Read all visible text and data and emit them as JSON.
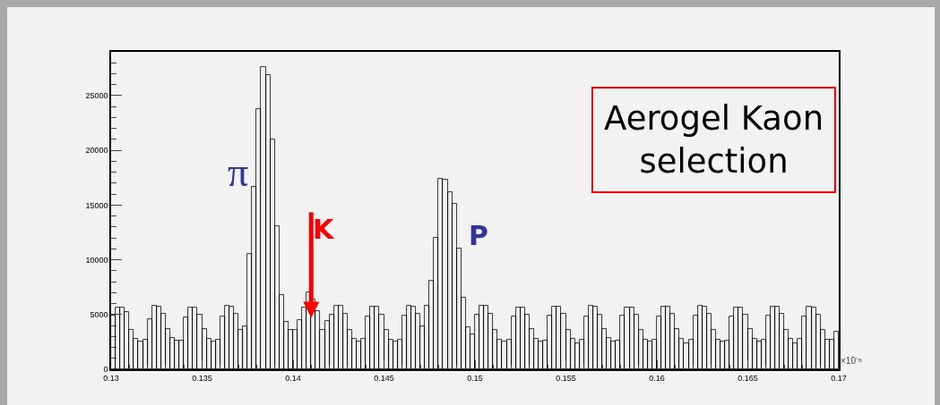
{
  "chart_data": {
    "type": "histogram",
    "bins": [
      0.13,
      0.13025,
      0.1305,
      0.13075,
      0.131,
      0.13125,
      0.1315,
      0.13175,
      0.132,
      0.13225,
      0.1325,
      0.13275,
      0.133,
      0.13325,
      0.1335,
      0.13375,
      0.134,
      0.13425,
      0.1345,
      0.13475,
      0.135,
      0.13525,
      0.1355,
      0.13575,
      0.136,
      0.13625,
      0.1365,
      0.13675,
      0.137,
      0.13725,
      0.1375,
      0.13775,
      0.138,
      0.13825,
      0.1385,
      0.13875,
      0.139,
      0.13925,
      0.1395,
      0.13975,
      0.14,
      0.14025,
      0.1405,
      0.14075,
      0.141,
      0.14125,
      0.1415,
      0.14175,
      0.142,
      0.14225,
      0.1425,
      0.14275,
      0.143,
      0.14325,
      0.1435,
      0.14375,
      0.144,
      0.14425,
      0.1445,
      0.14475,
      0.145,
      0.14525,
      0.1455,
      0.14575,
      0.146,
      0.14625,
      0.1465,
      0.14675,
      0.147,
      0.14725,
      0.1475,
      0.14775,
      0.148,
      0.14825,
      0.1485,
      0.14875,
      0.149,
      0.14925,
      0.1495,
      0.14975,
      0.15,
      0.15025,
      0.1505,
      0.15075,
      0.151,
      0.15125,
      0.1515,
      0.15175,
      0.152,
      0.15225,
      0.1525,
      0.15275,
      0.153,
      0.15325,
      0.1535,
      0.15375,
      0.154,
      0.15425,
      0.1545,
      0.15475,
      0.155,
      0.15525,
      0.1555,
      0.15575,
      0.156,
      0.15625,
      0.1565,
      0.15675,
      0.157,
      0.15725,
      0.1575,
      0.15775,
      0.158,
      0.15825,
      0.1585,
      0.15875,
      0.159,
      0.15925,
      0.1595,
      0.15975,
      0.16,
      0.16025,
      0.1605,
      0.16075,
      0.161,
      0.16125,
      0.1615,
      0.16175,
      0.162,
      0.16225,
      0.1625,
      0.16275,
      0.163,
      0.16325,
      0.1635,
      0.16375,
      0.164,
      0.16425,
      0.1645,
      0.16475,
      0.165,
      0.16525,
      0.1655,
      0.16575,
      0.166,
      0.16625,
      0.1665,
      0.16675,
      0.167,
      0.16725,
      0.1675,
      0.16775,
      0.168,
      0.16825,
      0.1685,
      0.16875,
      0.169,
      0.16925,
      0.1695,
      0.16975,
      0.17
    ],
    "values": [
      4900,
      5600,
      5600,
      5200,
      3600,
      2800,
      2500,
      2700,
      4600,
      5800,
      5700,
      5100,
      3700,
      2900,
      2600,
      2600,
      4700,
      5600,
      5600,
      5000,
      3700,
      2800,
      2500,
      2700,
      4800,
      5800,
      5700,
      5100,
      3600,
      3900,
      10500,
      16700,
      23800,
      27600,
      26900,
      21000,
      13100,
      6800,
      4300,
      3600,
      3600,
      4500,
      5600,
      7000,
      6400,
      5300,
      3600,
      4400,
      5000,
      5800,
      5800,
      5100,
      3600,
      2800,
      2500,
      2800,
      4800,
      5700,
      5700,
      5000,
      3600,
      2700,
      2500,
      2700,
      4900,
      5800,
      5700,
      5100,
      3900,
      5800,
      8100,
      12000,
      17400,
      17300,
      16200,
      15100,
      11000,
      6500,
      3800,
      3200,
      5000,
      5800,
      5800,
      5100,
      3600,
      2700,
      2500,
      2700,
      4800,
      5600,
      5600,
      5000,
      3700,
      2800,
      2500,
      2600,
      4900,
      5700,
      5700,
      5100,
      3600,
      2800,
      2400,
      2700,
      4800,
      5800,
      5700,
      5000,
      3700,
      2900,
      2500,
      2600,
      4900,
      5600,
      5600,
      5000,
      3600,
      2700,
      2500,
      2700,
      4800,
      5700,
      5700,
      5100,
      3700,
      2800,
      2400,
      2700,
      4900,
      5800,
      5700,
      5100,
      3600,
      2700,
      2500,
      2600,
      4800,
      5600,
      5600,
      5000,
      3700,
      2800,
      2500,
      2700,
      4900,
      5700,
      5700,
      5100,
      3600,
      2800,
      2400,
      2800,
      4800,
      5700,
      5600,
      5000,
      3600,
      2700,
      2700,
      3400
    ],
    "color": "#000000",
    "xlim": [
      0.13,
      0.17
    ],
    "xticks": [
      0.13,
      0.135,
      0.14,
      0.145,
      0.15,
      0.155,
      0.16,
      0.165,
      0.17
    ],
    "ylim": [
      0,
      29000
    ],
    "yticks": [
      0,
      5000,
      10000,
      15000,
      20000,
      25000
    ],
    "annotations": [
      "π",
      {
        "text": "K",
        "x": 0.141,
        "y": 4700
      },
      "P",
      "Aerogel Kaon\nselection",
      "×10⁻⁶"
    ],
    "grid": false
  }
}
